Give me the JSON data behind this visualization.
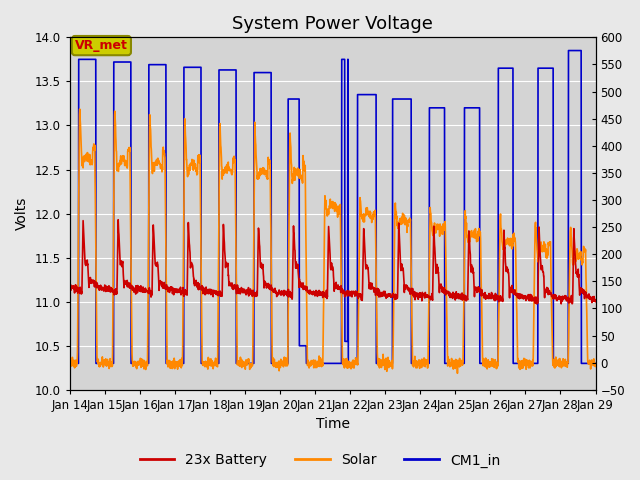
{
  "title": "System Power Voltage",
  "xlabel": "Time",
  "ylabel": "Volts",
  "ylim_left": [
    10.0,
    14.0
  ],
  "ylim_right": [
    -50,
    600
  ],
  "yticks_left": [
    10.0,
    10.5,
    11.0,
    11.5,
    12.0,
    12.5,
    13.0,
    13.5,
    14.0
  ],
  "yticks_right": [
    -50,
    0,
    50,
    100,
    150,
    200,
    250,
    300,
    350,
    400,
    450,
    500,
    550,
    600
  ],
  "background_color": "#e8e8e8",
  "plot_bg_color": "#d4d4d4",
  "grid_color": "#ffffff",
  "legend_items": [
    "23x Battery",
    "Solar",
    "CM1_in"
  ],
  "legend_colors": [
    "#cc0000",
    "#ff8800",
    "#0000cc"
  ],
  "vr_met_label": "VR_met",
  "vr_met_color": "#cc0000",
  "vr_met_box_color": "#cccc00",
  "title_fontsize": 13,
  "label_fontsize": 10,
  "tick_fontsize": 8.5,
  "linewidth": 1.2
}
